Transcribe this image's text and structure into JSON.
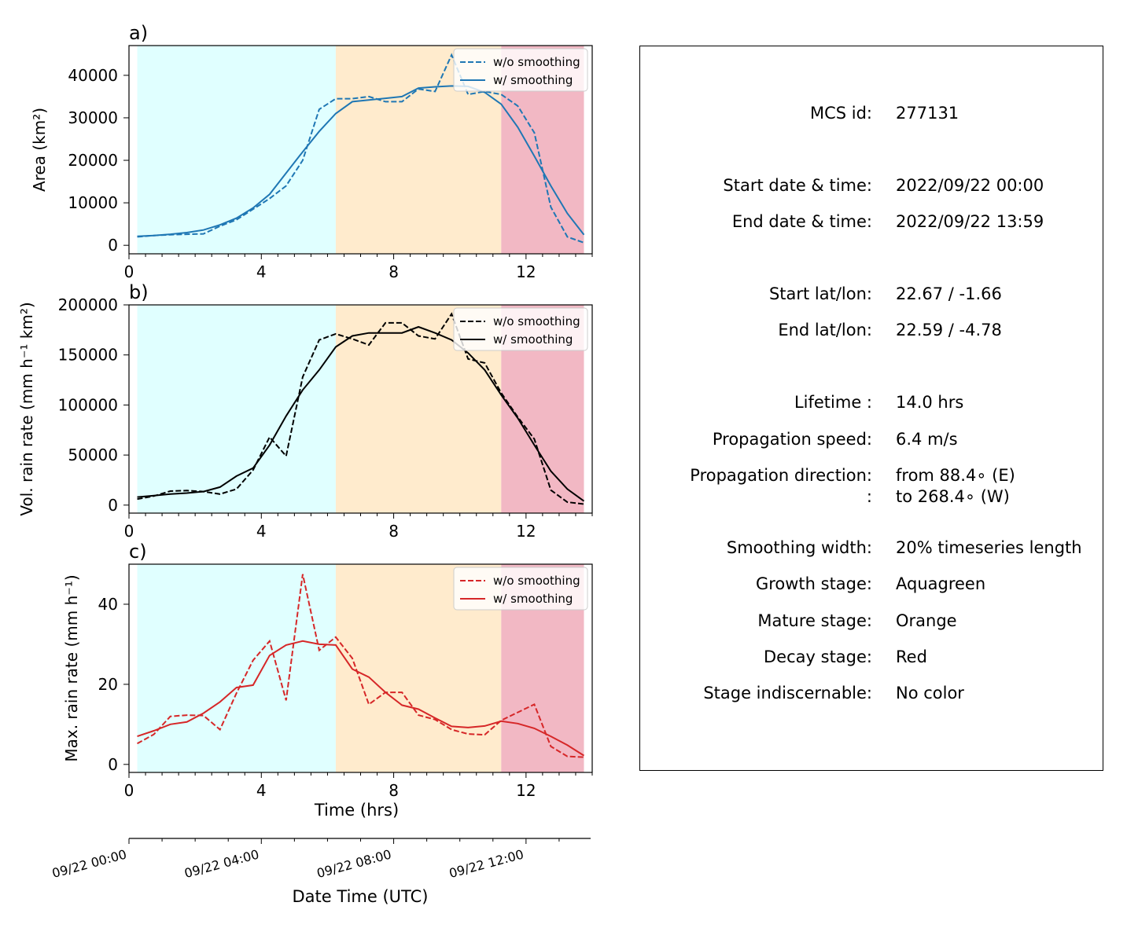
{
  "chart_data": [
    {
      "type": "line",
      "panel_label": "a)",
      "ylabel": "Area  (km²)",
      "ylim": [
        -2000,
        47000
      ],
      "yticks": [
        0,
        10000,
        20000,
        30000,
        40000
      ],
      "xlim": [
        0,
        14
      ],
      "xticks": [
        0,
        4,
        8,
        12
      ],
      "stages": [
        {
          "name": "growth",
          "from": 0.25,
          "to": 6.25,
          "color": "#e0ffff"
        },
        {
          "name": "mature",
          "from": 6.25,
          "to": 11.25,
          "color": "#ffebcd"
        },
        {
          "name": "decay",
          "from": 11.25,
          "to": 13.75,
          "color": "#f2b8c4"
        }
      ],
      "series": [
        {
          "name": "w/o smoothing",
          "style": "dashed",
          "color": "#1f77b4",
          "x": [
            0.25,
            0.75,
            1.25,
            1.75,
            2.25,
            2.75,
            3.25,
            3.75,
            4.25,
            4.75,
            5.25,
            5.75,
            6.25,
            6.75,
            7.25,
            7.75,
            8.25,
            8.75,
            9.25,
            9.75,
            10.25,
            10.75,
            11.25,
            11.75,
            12.25,
            12.75,
            13.25,
            13.75
          ],
          "y": [
            2000,
            2300,
            2500,
            2600,
            2700,
            4500,
            6000,
            8500,
            11000,
            14000,
            20000,
            32000,
            34500,
            34500,
            35000,
            33800,
            33800,
            36800,
            36200,
            44800,
            35500,
            36200,
            35500,
            32800,
            26500,
            9000,
            2000,
            600
          ]
        },
        {
          "name": "w/ smoothing",
          "style": "solid",
          "color": "#1f77b4",
          "x": [
            0.25,
            0.75,
            1.25,
            1.75,
            2.25,
            2.75,
            3.25,
            3.75,
            4.25,
            4.75,
            5.25,
            5.75,
            6.25,
            6.75,
            7.25,
            7.75,
            8.25,
            8.75,
            9.25,
            9.75,
            10.25,
            10.75,
            11.25,
            11.75,
            12.25,
            12.75,
            13.25,
            13.75
          ],
          "y": [
            2100,
            2300,
            2600,
            3000,
            3600,
            4800,
            6400,
            8800,
            12000,
            17000,
            22000,
            26800,
            31000,
            33800,
            34200,
            34600,
            35000,
            37000,
            37300,
            37500,
            37400,
            36000,
            33200,
            27800,
            21000,
            14000,
            7500,
            2500
          ]
        }
      ]
    },
    {
      "type": "line",
      "panel_label": "b)",
      "ylabel": "Vol. rain rate (mm h⁻¹ km²)",
      "ylim": [
        -8000,
        200000
      ],
      "yticks": [
        0,
        50000,
        100000,
        150000,
        200000
      ],
      "xlim": [
        0,
        14
      ],
      "xticks": [
        0,
        4,
        8,
        12
      ],
      "stages": [
        {
          "name": "growth",
          "from": 0.25,
          "to": 6.25,
          "color": "#e0ffff"
        },
        {
          "name": "mature",
          "from": 6.25,
          "to": 11.25,
          "color": "#ffebcd"
        },
        {
          "name": "decay",
          "from": 11.25,
          "to": 13.75,
          "color": "#f2b8c4"
        }
      ],
      "series": [
        {
          "name": "w/o smoothing",
          "style": "dashed",
          "color": "#000000",
          "x": [
            0.25,
            0.75,
            1.25,
            1.75,
            2.25,
            2.75,
            3.25,
            3.75,
            4.25,
            4.75,
            5.25,
            5.75,
            6.25,
            6.75,
            7.25,
            7.75,
            8.25,
            8.75,
            9.25,
            9.75,
            10.25,
            10.75,
            11.25,
            11.75,
            12.25,
            12.75,
            13.25,
            13.75
          ],
          "y": [
            6000,
            9000,
            14000,
            14500,
            13500,
            11000,
            16000,
            35000,
            68000,
            49000,
            128000,
            165000,
            171000,
            166000,
            160000,
            182000,
            182000,
            169000,
            166000,
            191000,
            146000,
            142000,
            112000,
            88000,
            66000,
            15000,
            3000,
            1000
          ]
        },
        {
          "name": "w/ smoothing",
          "style": "solid",
          "color": "#000000",
          "x": [
            0.25,
            0.75,
            1.25,
            1.75,
            2.25,
            2.75,
            3.25,
            3.75,
            4.25,
            4.75,
            5.25,
            5.75,
            6.25,
            6.75,
            7.25,
            7.75,
            8.25,
            8.75,
            9.25,
            9.75,
            10.25,
            10.75,
            11.25,
            11.75,
            12.25,
            12.75,
            13.25,
            13.75
          ],
          "y": [
            8000,
            9500,
            11000,
            12000,
            13500,
            18000,
            29000,
            37000,
            60000,
            89000,
            115000,
            135000,
            158000,
            169000,
            172000,
            172000,
            172000,
            178000,
            172000,
            165000,
            152000,
            135000,
            110000,
            87000,
            60000,
            34000,
            16000,
            4000
          ]
        }
      ]
    },
    {
      "type": "line",
      "panel_label": "c)",
      "ylabel": "Max. rain rate  (mm h⁻¹)",
      "ylim": [
        -2,
        50
      ],
      "yticks": [
        0,
        20,
        40
      ],
      "xlim": [
        0,
        14
      ],
      "xticks": [
        0,
        4,
        8,
        12
      ],
      "xlabel": "Time (hrs)",
      "stages": [
        {
          "name": "growth",
          "from": 0.25,
          "to": 6.25,
          "color": "#e0ffff"
        },
        {
          "name": "mature",
          "from": 6.25,
          "to": 11.25,
          "color": "#ffebcd"
        },
        {
          "name": "decay",
          "from": 11.25,
          "to": 13.75,
          "color": "#f2b8c4"
        }
      ],
      "series": [
        {
          "name": "w/o smoothing",
          "style": "dashed",
          "color": "#d62728",
          "x": [
            0.25,
            0.75,
            1.25,
            1.75,
            2.25,
            2.75,
            3.25,
            3.75,
            4.25,
            4.75,
            5.25,
            5.75,
            6.25,
            6.75,
            7.25,
            7.75,
            8.25,
            8.75,
            9.25,
            9.75,
            10.25,
            10.75,
            11.25,
            11.75,
            12.25,
            12.75,
            13.25,
            13.75
          ],
          "y": [
            5.2,
            7.5,
            12.0,
            12.3,
            12.2,
            8.7,
            17.8,
            26.0,
            30.8,
            16.0,
            47.5,
            28.5,
            31.8,
            26.5,
            15.0,
            18.0,
            18.0,
            12.3,
            11.2,
            8.7,
            7.6,
            7.4,
            11.0,
            13.0,
            15.0,
            4.5,
            2.0,
            1.8
          ]
        },
        {
          "name": "w/ smoothing",
          "style": "solid",
          "color": "#d62728",
          "x": [
            0.25,
            0.75,
            1.25,
            1.75,
            2.25,
            2.75,
            3.25,
            3.75,
            4.25,
            4.75,
            5.25,
            5.75,
            6.25,
            6.75,
            7.25,
            7.75,
            8.25,
            8.75,
            9.25,
            9.75,
            10.25,
            10.75,
            11.25,
            11.75,
            12.25,
            12.75,
            13.25,
            13.75
          ],
          "y": [
            7.0,
            8.4,
            10.0,
            10.6,
            12.8,
            15.6,
            19.2,
            19.8,
            27.2,
            29.8,
            30.8,
            30.0,
            29.8,
            23.8,
            21.8,
            18.0,
            14.8,
            13.8,
            11.6,
            9.5,
            9.2,
            9.6,
            10.8,
            10.2,
            9.0,
            7.0,
            4.8,
            2.2
          ]
        }
      ]
    }
  ],
  "date_axis": {
    "label": "Date Time (UTC)",
    "ticks": [
      {
        "hour": 0,
        "label": "09/22 00:00"
      },
      {
        "hour": 4,
        "label": "09/22 04:00"
      },
      {
        "hour": 8,
        "label": "09/22 08:00"
      },
      {
        "hour": 12,
        "label": "09/22 12:00"
      }
    ]
  },
  "info": {
    "mcs_id_label": "MCS id:",
    "mcs_id_value": "277131",
    "start_dt_label": "Start date & time:",
    "start_dt_value": "2022/09/22 00:00",
    "end_dt_label": "End date & time:",
    "end_dt_value": "2022/09/22 13:59",
    "start_latlon_label": "Start lat/lon:",
    "start_latlon_value": "22.67 / -1.66",
    "end_latlon_label": "End lat/lon:",
    "end_latlon_value": "22.59 / -4.78",
    "lifetime_label": "Lifetime :",
    "lifetime_value": "14.0 hrs",
    "speed_label": "Propagation speed:",
    "speed_value": "6.4 m/s",
    "direction_label": "Propagation direction:",
    "direction_label_2": ":",
    "direction_value": "from  88.4∘ (E)",
    "direction_value_2": "to   268.4∘ (W)",
    "smoothing_label": "Smoothing width:",
    "smoothing_value": "20% timeseries length",
    "growth_label": "Growth stage:",
    "growth_value": "Aquagreen",
    "mature_label": "Mature stage:",
    "mature_value": "Orange",
    "decay_label": "Decay stage:",
    "decay_value": "Red",
    "indisc_label": "Stage indiscernable:",
    "indisc_value": "No color"
  }
}
